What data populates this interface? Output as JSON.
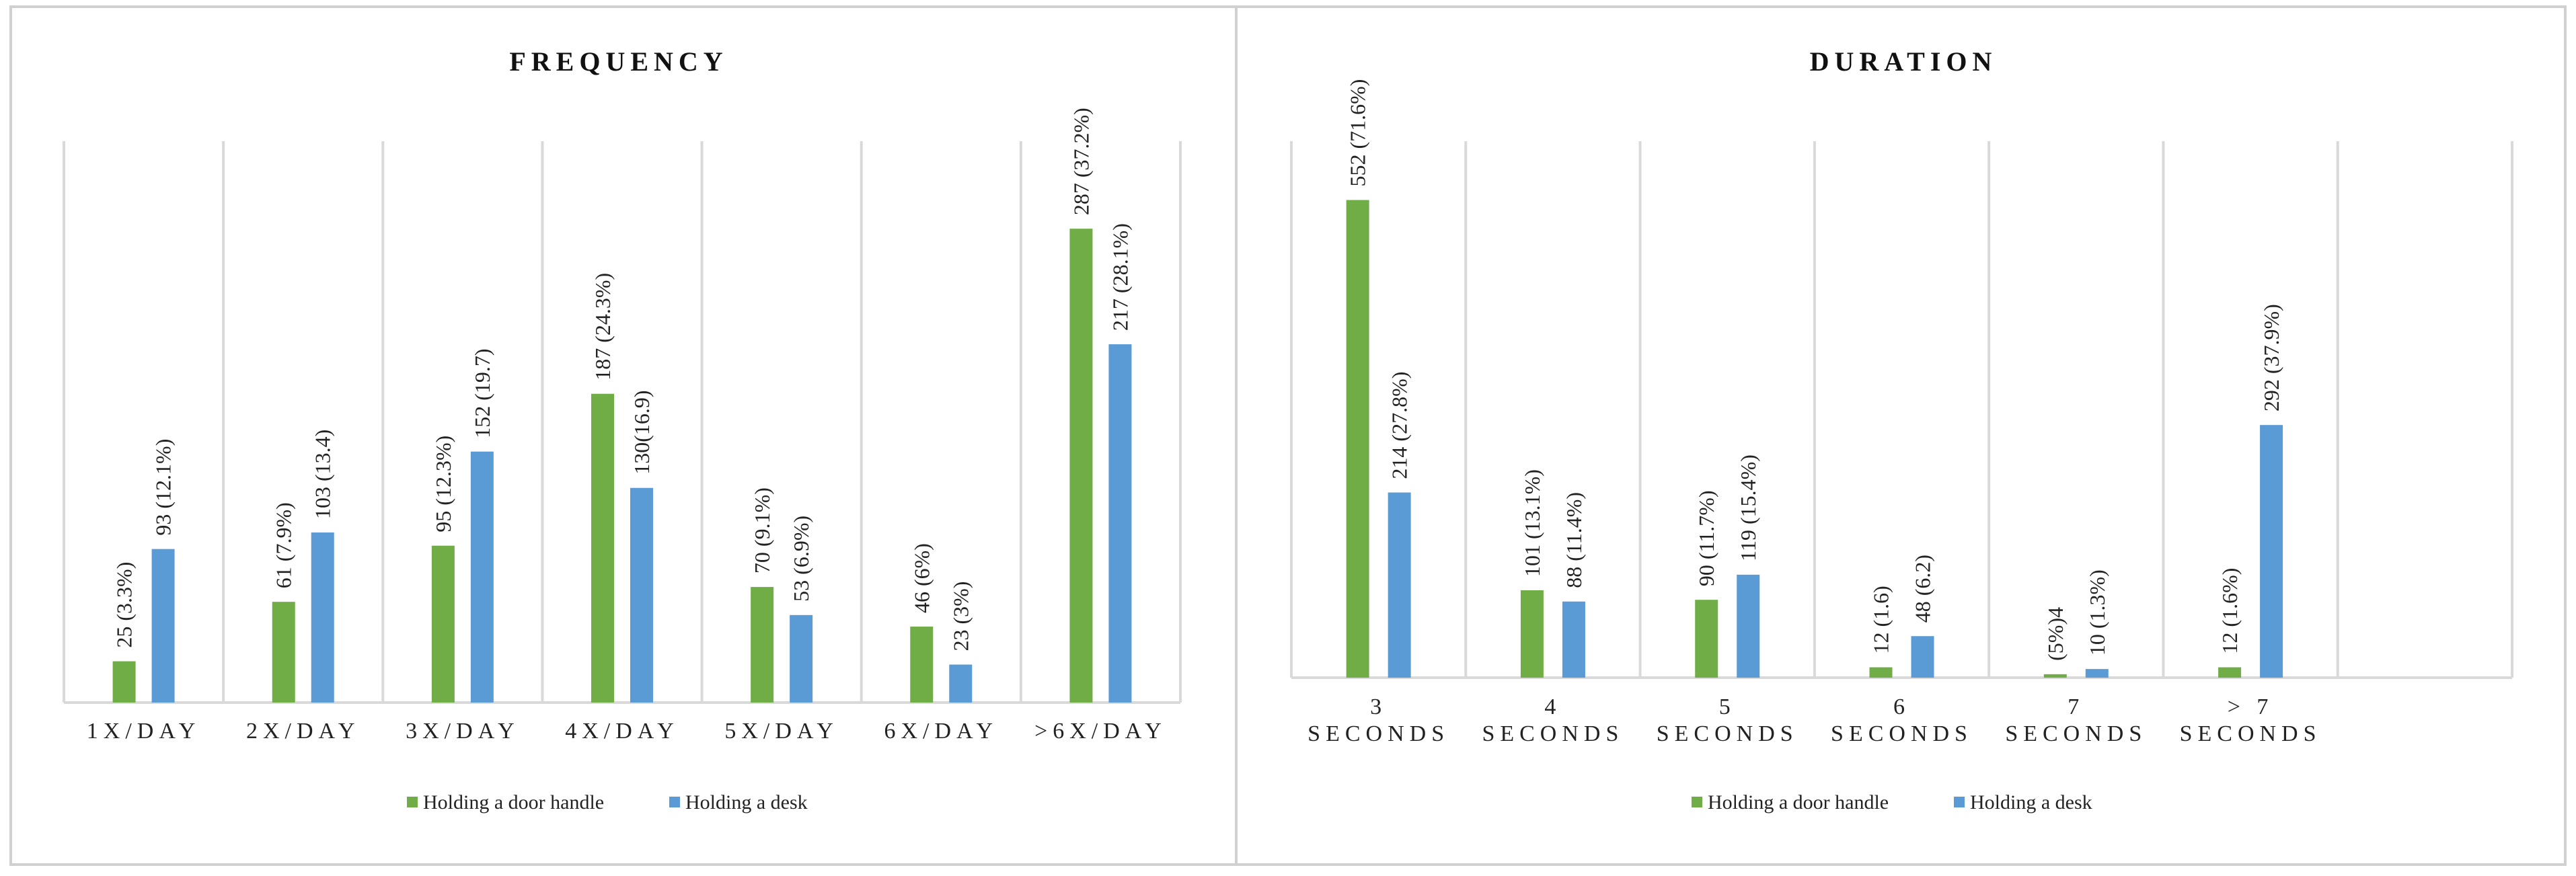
{
  "chart_data": [
    {
      "type": "bar",
      "title": "FREQUENCY",
      "categories": [
        "1X/DAY",
        "2X/DAY",
        "3X/DAY",
        "4X/DAY",
        "5X/DAY",
        "6X/DAY",
        ">6X/DAY"
      ],
      "series": [
        {
          "name": "Holding a door handle",
          "color": "#70ad47",
          "values": [
            25,
            61,
            95,
            187,
            70,
            46,
            287
          ],
          "labels": [
            "25 (3.3%)",
            "61 (7.9%)",
            "95 (12.3%)",
            "187 (24.3%)",
            "70 (9.1%)",
            "46 (6%)",
            "287 (37.2%)"
          ]
        },
        {
          "name": "Holding a desk",
          "color": "#5b9bd5",
          "values": [
            93,
            103,
            152,
            130,
            53,
            23,
            217
          ],
          "labels": [
            "93 (12.1%)",
            "103 (13.4)",
            "152 (19.7)",
            "130(16.9)",
            "53 (6.9%)",
            "23 (3%)",
            "217 (28.1%)"
          ]
        }
      ],
      "ylim": [
        0,
        340
      ],
      "legend": "bottom",
      "grid": "vertical"
    },
    {
      "type": "bar",
      "title": "DURATION",
      "categories": [
        [
          "3",
          "SECONDS"
        ],
        [
          "4",
          "SECONDS"
        ],
        [
          "5",
          "SECONDS"
        ],
        [
          "6",
          "SECONDS"
        ],
        [
          "7",
          "SECONDS"
        ],
        [
          "> 7",
          "SECONDS"
        ],
        [
          "",
          ""
        ]
      ],
      "series": [
        {
          "name": "Holding a door handle",
          "color": "#70ad47",
          "values": [
            552,
            101,
            90,
            12,
            4,
            12,
            null
          ],
          "labels": [
            "552 (71.6%)",
            "101 (13.1%)",
            "90 (11.7%)",
            "12 (1.6)",
            "(5%)4",
            "12 (1.6%)",
            ""
          ]
        },
        {
          "name": "Holding a desk",
          "color": "#5b9bd5",
          "values": [
            214,
            88,
            119,
            48,
            10,
            292,
            null
          ],
          "labels": [
            "214 (27.8%)",
            "88 (11.4%)",
            "119 (15.4%)",
            "48 (6.2)",
            "10 (1.3%)",
            "292 (37.9%)",
            ""
          ]
        }
      ],
      "ylim": [
        0,
        620
      ],
      "legend": "bottom",
      "grid": "vertical"
    }
  ]
}
